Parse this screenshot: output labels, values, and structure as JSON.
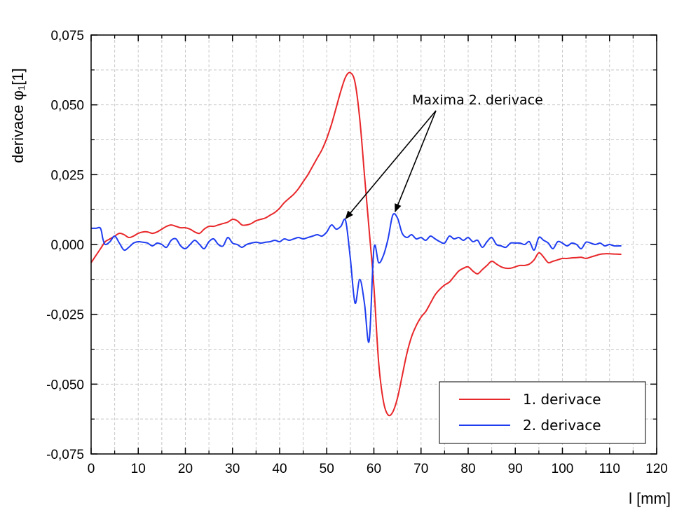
{
  "chart_data": {
    "type": "line",
    "xlabel": "l [mm]",
    "ylabel": "derivace φ₁[1]",
    "xlim": [
      0,
      120
    ],
    "ylim": [
      -0.075,
      0.075
    ],
    "x_ticks": [
      0,
      10,
      20,
      30,
      40,
      50,
      60,
      70,
      80,
      90,
      100,
      110,
      120
    ],
    "x_tick_labels": [
      "0",
      "10",
      "20",
      "30",
      "40",
      "50",
      "60",
      "70",
      "80",
      "90",
      "100",
      "110",
      "120"
    ],
    "y_ticks": [
      -0.075,
      -0.05,
      -0.025,
      0,
      0.025,
      0.05,
      0.075
    ],
    "y_tick_labels": [
      "-0,075",
      "-0,050",
      "-0,025",
      "0,000",
      "0,025",
      "0,050",
      "0,075"
    ],
    "grid": true,
    "legend_position": "bottom-right",
    "annotation": {
      "text": "Maxima 2. derivace",
      "arrow_targets": [
        [
          54,
          0.0085
        ],
        [
          64.5,
          0.011
        ]
      ]
    },
    "series": [
      {
        "name": "1. derivace",
        "color": "#e8272a",
        "x": [
          0,
          1,
          2,
          3,
          4,
          5,
          6,
          7,
          8,
          9,
          10,
          11,
          12,
          13,
          14,
          15,
          16,
          17,
          18,
          19,
          20,
          21,
          22,
          23,
          24,
          25,
          26,
          27,
          28,
          29,
          30,
          31,
          32,
          33,
          34,
          35,
          36,
          37,
          38,
          39,
          40,
          41,
          42,
          43,
          44,
          45,
          46,
          47,
          48,
          49,
          50,
          51,
          52,
          53,
          54,
          55,
          56,
          57,
          58,
          59,
          60,
          61,
          62,
          63,
          64,
          65,
          66,
          67,
          68,
          69,
          70,
          71,
          72,
          73,
          74,
          75,
          76,
          77,
          78,
          79,
          80,
          81,
          82,
          83,
          84,
          85,
          86,
          87,
          88,
          89,
          90,
          91,
          92,
          93,
          94,
          95,
          96,
          97,
          98,
          99,
          100,
          101,
          102,
          103,
          104,
          105,
          106,
          107,
          108,
          109,
          110,
          111,
          112.5
        ],
        "values": [
          -0.0065,
          -0.004,
          -0.0015,
          0.001,
          0.002,
          0.003,
          0.004,
          0.0035,
          0.0025,
          0.003,
          0.004,
          0.0045,
          0.0045,
          0.004,
          0.0045,
          0.0055,
          0.0065,
          0.007,
          0.0065,
          0.006,
          0.006,
          0.0055,
          0.0045,
          0.004,
          0.0055,
          0.0065,
          0.0065,
          0.007,
          0.0075,
          0.008,
          0.009,
          0.0085,
          0.007,
          0.007,
          0.0075,
          0.0085,
          0.009,
          0.0095,
          0.0105,
          0.0115,
          0.013,
          0.015,
          0.0165,
          0.018,
          0.02,
          0.0225,
          0.025,
          0.028,
          0.031,
          0.034,
          0.038,
          0.043,
          0.049,
          0.055,
          0.06,
          0.0615,
          0.058,
          0.045,
          0.025,
          0.005,
          -0.015,
          -0.042,
          -0.056,
          -0.061,
          -0.06,
          -0.055,
          -0.047,
          -0.039,
          -0.033,
          -0.029,
          -0.026,
          -0.024,
          -0.021,
          -0.018,
          -0.016,
          -0.0145,
          -0.0135,
          -0.0115,
          -0.0095,
          -0.0085,
          -0.008,
          -0.0095,
          -0.0105,
          -0.009,
          -0.0075,
          -0.006,
          -0.007,
          -0.008,
          -0.0085,
          -0.0085,
          -0.008,
          -0.0075,
          -0.0075,
          -0.007,
          -0.0055,
          -0.003,
          -0.0045,
          -0.0065,
          -0.006,
          -0.0055,
          -0.005,
          -0.005,
          -0.0048,
          -0.0047,
          -0.0046,
          -0.005,
          -0.0045,
          -0.004,
          -0.0035,
          -0.0033,
          -0.0033,
          -0.0034,
          -0.0035
        ]
      },
      {
        "name": "2. derivace",
        "color": "#1f3df0",
        "x": [
          0,
          1,
          2,
          2.5,
          3,
          4,
          5,
          6,
          7,
          8,
          9,
          10,
          11,
          12,
          13,
          14,
          15,
          16,
          17,
          18,
          19,
          20,
          21,
          22,
          23,
          24,
          25,
          26,
          27,
          28,
          29,
          30,
          31,
          32,
          33,
          34,
          35,
          36,
          37,
          38,
          39,
          40,
          41,
          42,
          43,
          44,
          45,
          46,
          47,
          48,
          49,
          50,
          51,
          52,
          53,
          54,
          55,
          56,
          57,
          58,
          59,
          60,
          61,
          62,
          63,
          64,
          65,
          66,
          67,
          68,
          69,
          70,
          71,
          72,
          73,
          74,
          75,
          76,
          77,
          78,
          79,
          80,
          81,
          82,
          83,
          84,
          85,
          86,
          87,
          88,
          89,
          90,
          91,
          92,
          93,
          94,
          95,
          96,
          97,
          98,
          99,
          100,
          101,
          102,
          103,
          104,
          105,
          106,
          107,
          108,
          109,
          110,
          111,
          112.5
        ],
        "values": [
          0.0058,
          0.0058,
          0.0058,
          0.002,
          0.0,
          0.001,
          0.003,
          0.0005,
          -0.002,
          -0.001,
          0.0005,
          0.001,
          0.0008,
          0.0005,
          -0.0005,
          0.0005,
          0.0,
          -0.001,
          0.0015,
          0.002,
          -0.0005,
          -0.0015,
          0.0,
          0.0015,
          0.0,
          -0.0015,
          0.001,
          0.002,
          0.0,
          -0.0005,
          0.0025,
          0.0005,
          0.0,
          -0.001,
          0.0,
          0.0005,
          0.0008,
          0.0005,
          0.0008,
          0.001,
          0.0015,
          0.001,
          0.002,
          0.0015,
          0.002,
          0.0025,
          0.002,
          0.0025,
          0.003,
          0.0035,
          0.003,
          0.0045,
          0.007,
          0.0055,
          0.0065,
          0.0085,
          -0.005,
          -0.021,
          -0.0125,
          -0.021,
          -0.0345,
          -0.0015,
          -0.0065,
          -0.004,
          0.002,
          0.0105,
          0.0095,
          0.004,
          0.0025,
          0.0035,
          0.002,
          0.0025,
          0.0015,
          0.003,
          0.002,
          0.001,
          0.0005,
          0.003,
          0.002,
          0.0025,
          0.0015,
          0.0025,
          0.001,
          0.0015,
          -0.001,
          0.001,
          0.0025,
          0.0,
          -0.0005,
          -0.001,
          0.0005,
          0.0005,
          0.0005,
          0.0,
          0.001,
          -0.002,
          0.0025,
          0.0015,
          0.0005,
          -0.0015,
          0.001,
          0.0005,
          -0.0005,
          0.0005,
          0.0,
          -0.0015,
          0.0008,
          0.0005,
          0.0,
          0.0005,
          -0.0005,
          0.0,
          -0.0005,
          -0.0005
        ]
      }
    ]
  }
}
